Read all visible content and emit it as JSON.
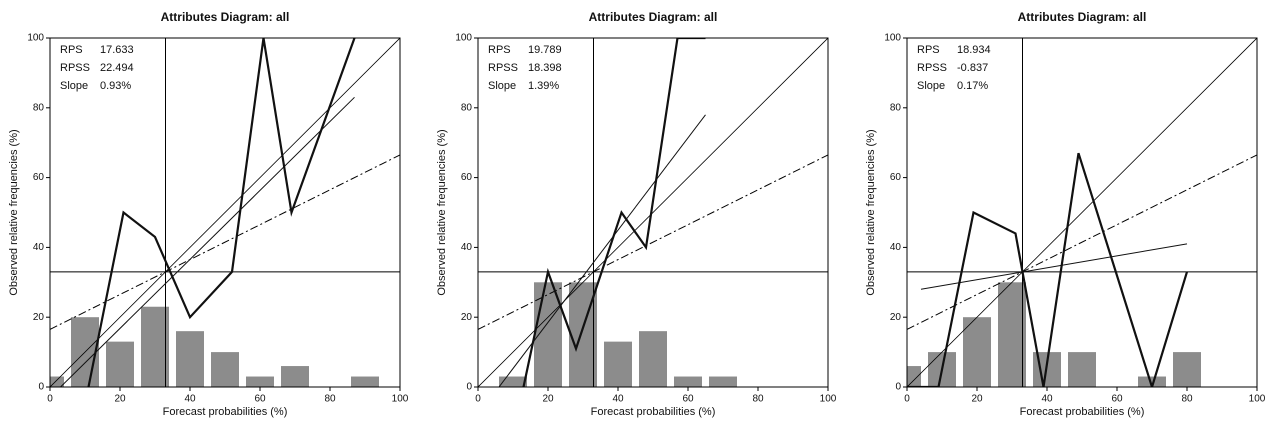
{
  "chart_data": [
    {
      "type": "attributes",
      "title": "Attributes Diagram: all",
      "x_label": "Forecast probabilities (%)",
      "y_label": "Observed relative frequencies (%)",
      "xlim": [
        0,
        100
      ],
      "ylim": [
        0,
        100
      ],
      "xticks": [
        0,
        20,
        40,
        60,
        80,
        100
      ],
      "yticks": [
        0,
        20,
        40,
        60,
        80,
        100
      ],
      "stats": [
        {
          "label": "RPS",
          "value": "17.633"
        },
        {
          "label": "RPSS",
          "value": "22.494"
        },
        {
          "label": "Slope",
          "value": "0.93%"
        }
      ],
      "climatology": 33,
      "histogram": {
        "color": "#8c8c8c",
        "x": [
          0,
          10,
          20,
          30,
          40,
          50,
          60,
          70,
          80,
          90
        ],
        "values": [
          3,
          20,
          13,
          23,
          16,
          10,
          3,
          6,
          0,
          3
        ]
      },
      "reliability_curve": {
        "color": "#111111",
        "x": [
          11,
          21,
          30,
          40,
          52,
          61,
          69,
          87
        ],
        "values": [
          0,
          50,
          43,
          20,
          33,
          100,
          50,
          100
        ]
      },
      "regression_line": {
        "color": "#111111",
        "x": [
          3,
          87
        ],
        "values": [
          0,
          83
        ]
      }
    },
    {
      "type": "attributes",
      "title": "Attributes Diagram: all",
      "x_label": "Forecast probabilities (%)",
      "y_label": "Observed relative frequencies (%)",
      "xlim": [
        0,
        100
      ],
      "ylim": [
        0,
        100
      ],
      "xticks": [
        0,
        20,
        40,
        60,
        80,
        100
      ],
      "yticks": [
        0,
        20,
        40,
        60,
        80,
        100
      ],
      "stats": [
        {
          "label": "RPS",
          "value": "19.789"
        },
        {
          "label": "RPSS",
          "value": "18.398"
        },
        {
          "label": "Slope",
          "value": "1.39%"
        }
      ],
      "climatology": 33,
      "histogram": {
        "color": "#8c8c8c",
        "x": [
          10,
          20,
          30,
          40,
          50,
          60,
          70,
          80,
          90
        ],
        "values": [
          3,
          30,
          30,
          13,
          16,
          3,
          3,
          0,
          0
        ]
      },
      "reliability_curve": {
        "color": "#111111",
        "x": [
          13,
          20,
          28,
          41,
          48,
          57,
          65
        ],
        "values": [
          0,
          33,
          11,
          50,
          40,
          100,
          100
        ]
      },
      "regression_line": {
        "color": "#111111",
        "x": [
          6,
          65
        ],
        "values": [
          0,
          78
        ]
      }
    },
    {
      "type": "attributes",
      "title": "Attributes Diagram: all",
      "x_label": "Forecast probabilities (%)",
      "y_label": "Observed relative frequencies (%)",
      "xlim": [
        0,
        100
      ],
      "ylim": [
        0,
        100
      ],
      "xticks": [
        0,
        20,
        40,
        60,
        80,
        100
      ],
      "yticks": [
        0,
        20,
        40,
        60,
        80,
        100
      ],
      "stats": [
        {
          "label": "RPS",
          "value": "18.934"
        },
        {
          "label": "RPSS",
          "value": "-0.837"
        },
        {
          "label": "Slope",
          "value": "0.17%"
        }
      ],
      "climatology": 33,
      "histogram": {
        "color": "#8c8c8c",
        "x": [
          0,
          10,
          20,
          30,
          40,
          50,
          60,
          70,
          80,
          90
        ],
        "values": [
          6,
          10,
          20,
          30,
          10,
          10,
          0,
          3,
          10,
          0
        ]
      },
      "reliability_curve": {
        "color": "#111111",
        "x": [
          0,
          9,
          19,
          31,
          39,
          49,
          70,
          80
        ],
        "values": [
          0,
          0,
          50,
          44,
          0,
          67,
          0,
          33
        ]
      },
      "regression_line": {
        "color": "#111111",
        "x": [
          4,
          80
        ],
        "values": [
          28,
          41
        ]
      }
    }
  ]
}
